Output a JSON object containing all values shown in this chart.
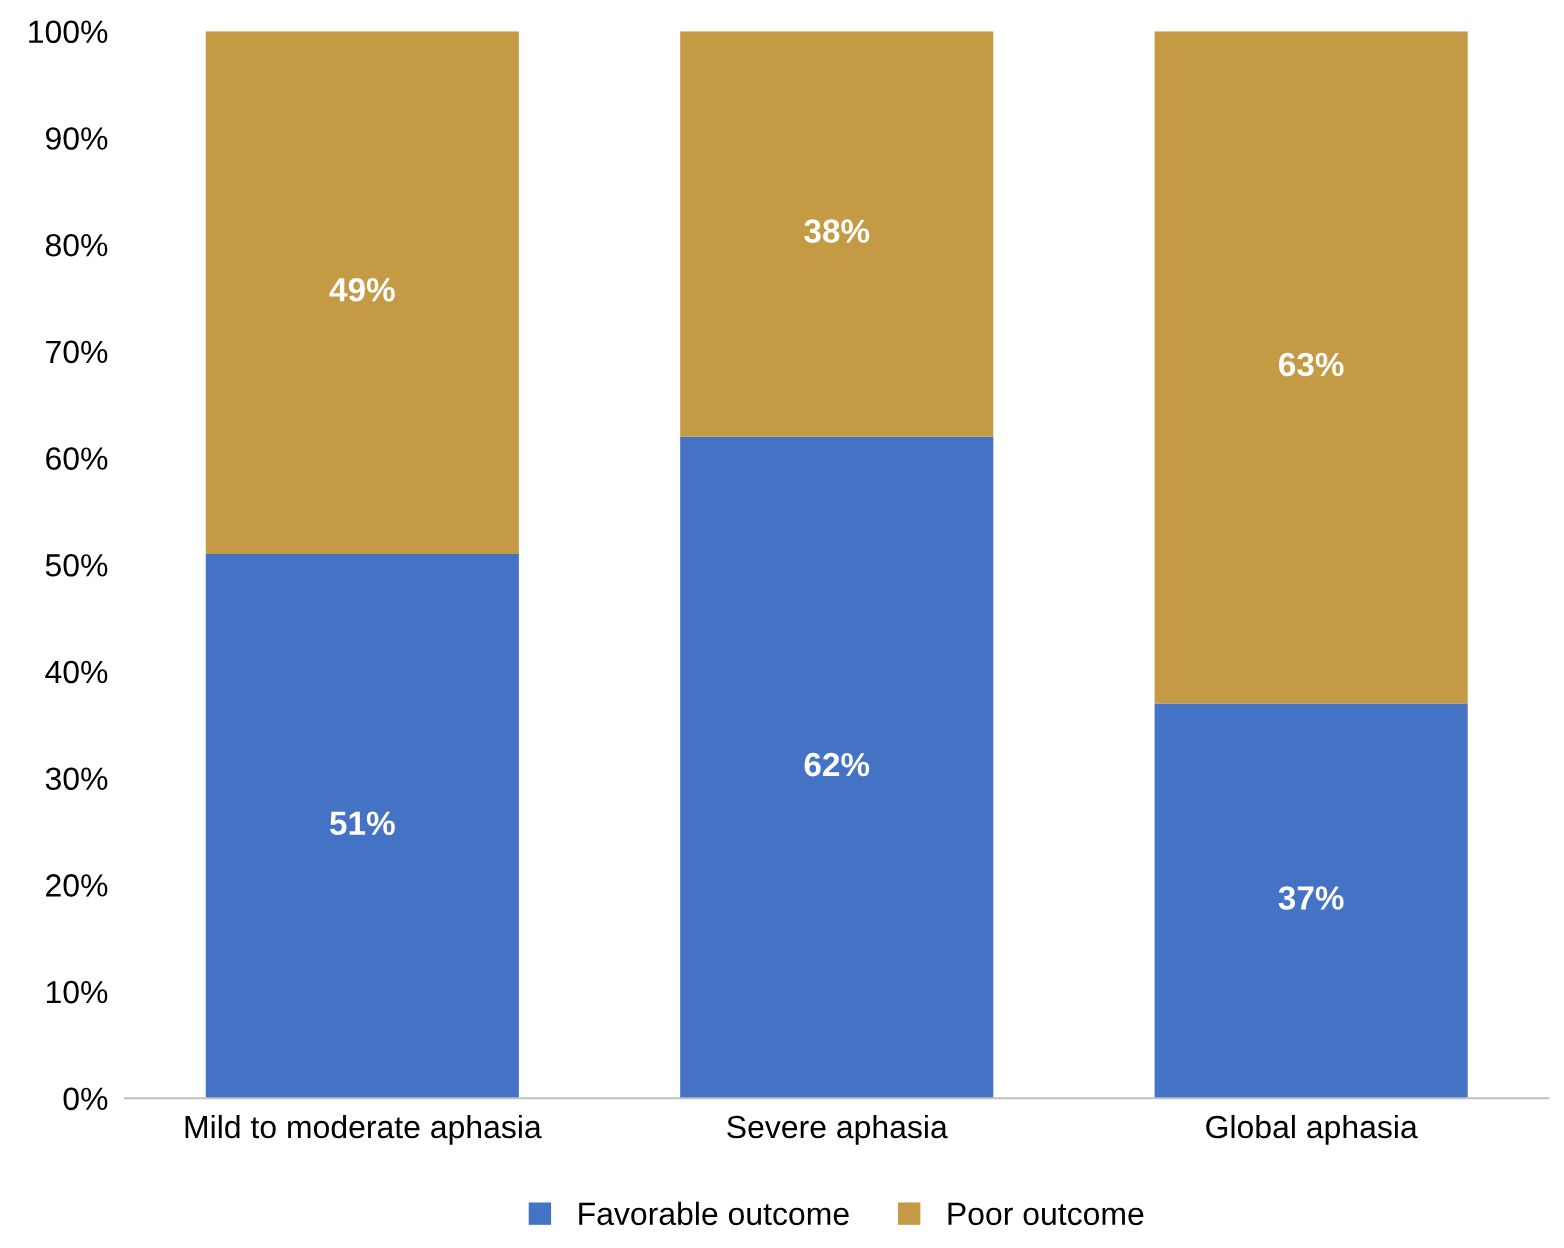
{
  "chart_data": {
    "type": "bar",
    "stacked": true,
    "categories": [
      "Mild to moderate aphasia",
      "Severe aphasia",
      "Global aphasia"
    ],
    "series": [
      {
        "name": "Favorable outcome",
        "color": "#4472c4",
        "values": [
          51,
          62,
          37
        ],
        "value_labels": [
          "51%",
          "62%",
          "37%"
        ]
      },
      {
        "name": "Poor outcome",
        "color": "#c49a45",
        "values": [
          49,
          38,
          63
        ],
        "value_labels": [
          "49%",
          "38%",
          "63%"
        ]
      }
    ],
    "ylim": [
      0,
      100
    ],
    "yticks": [
      {
        "value": 0,
        "label": "0%"
      },
      {
        "value": 10,
        "label": "10%"
      },
      {
        "value": 20,
        "label": "20%"
      },
      {
        "value": 30,
        "label": "30%"
      },
      {
        "value": 40,
        "label": "40%"
      },
      {
        "value": 50,
        "label": "50%"
      },
      {
        "value": 60,
        "label": "60%"
      },
      {
        "value": 70,
        "label": "70%"
      },
      {
        "value": 80,
        "label": "80%"
      },
      {
        "value": 90,
        "label": "90%"
      },
      {
        "value": 100,
        "label": "100%"
      }
    ],
    "grid": false,
    "legend": "bottom"
  }
}
